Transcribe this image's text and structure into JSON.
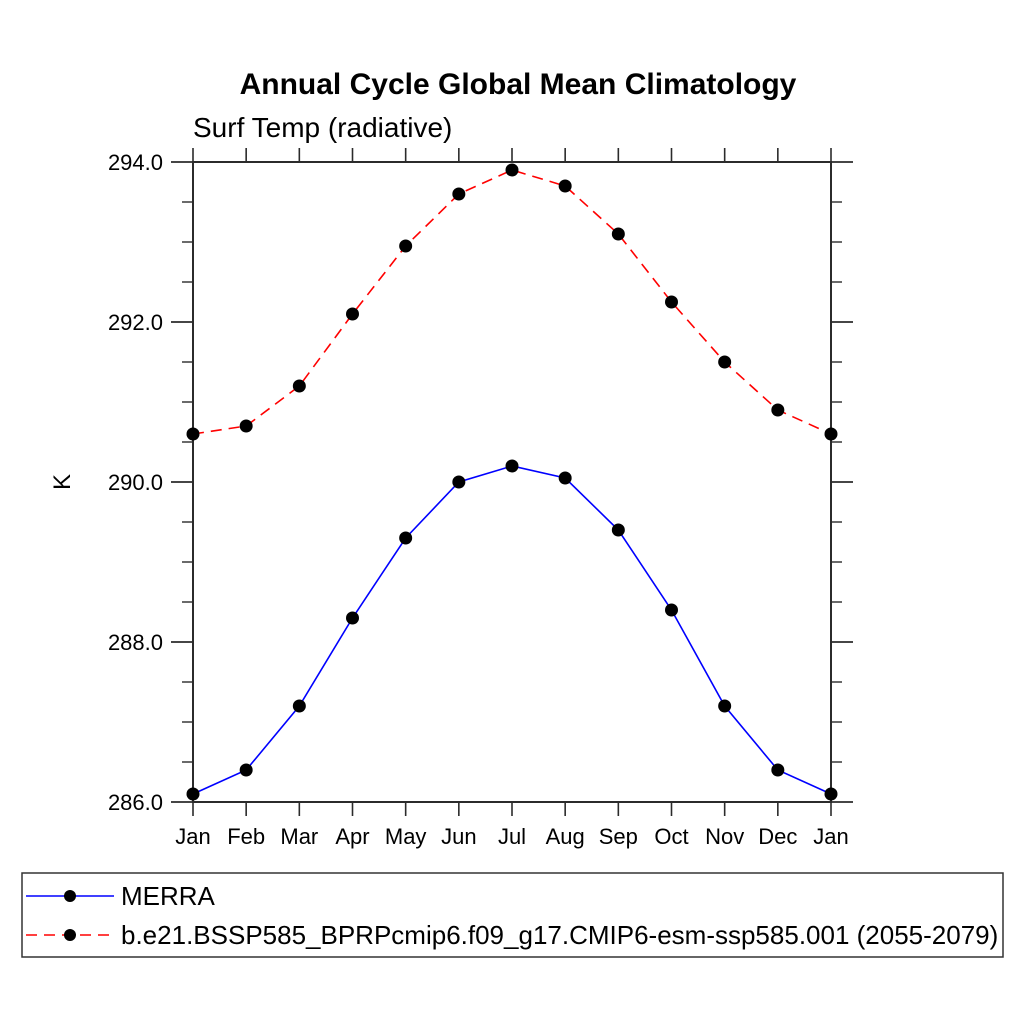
{
  "chart_data": {
    "type": "line",
    "title": "Annual Cycle Global Mean Climatology",
    "subtitle": "Surf Temp (radiative)",
    "ylabel": "K",
    "xlabel": "",
    "x_labels": [
      "Jan",
      "Feb",
      "Mar",
      "Apr",
      "May",
      "Jun",
      "Jul",
      "Aug",
      "Sep",
      "Oct",
      "Nov",
      "Dec",
      "Jan"
    ],
    "ylim": [
      286.0,
      294.0
    ],
    "yticks": [
      294,
      292,
      290,
      288,
      286
    ],
    "ytick_labels": [
      "294.0",
      "292.0",
      "290.0",
      "288.0",
      "286.0"
    ],
    "y_minor_step": 0.5,
    "grid": false,
    "legend_position": "bottom-box",
    "axis_color": "#2b2b2b",
    "marker_shape": "filled-circle",
    "series": [
      {
        "id": "merra",
        "name": "MERRA",
        "color": "#0000ff",
        "style": "solid",
        "marker_color": "#000000",
        "values": [
          286.1,
          286.4,
          287.2,
          288.3,
          289.3,
          290.0,
          290.2,
          290.05,
          289.4,
          288.4,
          287.2,
          286.4,
          286.1
        ]
      },
      {
        "id": "model",
        "name": "b.e21.BSSP585_BPRPcmip6.f09_g17.CMIP6-esm-ssp585.001 (2055-2079)",
        "color": "#ff0000",
        "style": "dashed",
        "marker_color": "#000000",
        "values": [
          290.6,
          290.7,
          291.2,
          292.1,
          292.95,
          293.6,
          293.9,
          293.7,
          293.1,
          292.25,
          291.5,
          290.9,
          290.6
        ]
      }
    ]
  }
}
